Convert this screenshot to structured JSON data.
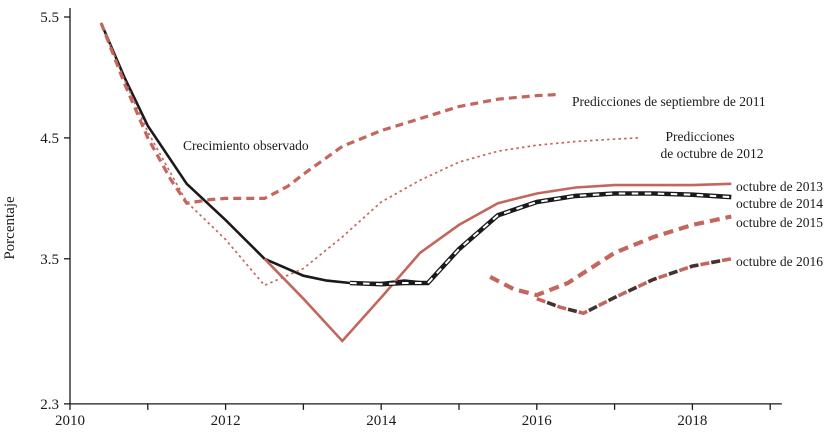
{
  "figure": {
    "ylabel": "Porcentaje",
    "labels": {
      "observed": "Crecimiento observado",
      "sep2011": "Predicciones de septiembre de 2011",
      "oct2012_line1": "Predicciones",
      "oct2012_line2": "de octubre de 2012",
      "oct2013": "octubre de 2013",
      "oct2014": "octubre de 2014",
      "oct2015": "octubre de 2015",
      "oct2016": "octubre de 2016"
    }
  },
  "chart_data": {
    "type": "line",
    "title": "",
    "xlabel": "",
    "ylabel": "Porcentaje",
    "xlim": [
      2010,
      2019.15
    ],
    "ylim": [
      2.3,
      5.5
    ],
    "x_ticks": [
      2010,
      2012,
      2014,
      2016,
      2018
    ],
    "x_minor_ticks": [
      2010,
      2011,
      2012,
      2013,
      2014,
      2015,
      2016,
      2017,
      2018,
      2019
    ],
    "y_ticks": [
      2.3,
      3.5,
      4.5,
      5.5
    ],
    "grid": false,
    "legend": "inline-labels",
    "colors": {
      "salmon": "#c3675e",
      "black": "#1a1a1a",
      "dark": "#453230",
      "white": "#ffffff"
    },
    "series": [
      {
        "id": "observado",
        "name": "Crecimiento observado",
        "style": "solid",
        "color": "black",
        "points": [
          [
            2010.4,
            5.45
          ],
          [
            2010.7,
            5.0
          ],
          [
            2011,
            4.6
          ],
          [
            2011.5,
            4.12
          ],
          [
            2012,
            3.82
          ],
          [
            2012.5,
            3.5
          ],
          [
            2013,
            3.36
          ],
          [
            2013.3,
            3.32
          ],
          [
            2013.6,
            3.3
          ],
          [
            2014,
            3.3
          ],
          [
            2014.3,
            3.32
          ],
          [
            2014.6,
            3.3
          ]
        ]
      },
      {
        "id": "sep2011",
        "name": "Predicciones de septiembre de 2011",
        "style": "dash",
        "color": "salmon",
        "points": [
          [
            2010.4,
            5.45
          ],
          [
            2010.7,
            4.95
          ],
          [
            2011,
            4.5
          ],
          [
            2011.3,
            4.15
          ],
          [
            2011.5,
            3.96
          ],
          [
            2011.8,
            3.99
          ],
          [
            2012,
            4.0
          ],
          [
            2012.5,
            4.0
          ],
          [
            2012.8,
            4.1
          ],
          [
            2013,
            4.2
          ],
          [
            2013.5,
            4.43
          ],
          [
            2014,
            4.56
          ],
          [
            2014.5,
            4.66
          ],
          [
            2015,
            4.76
          ],
          [
            2015.5,
            4.82
          ],
          [
            2016,
            4.85
          ],
          [
            2016.3,
            4.86
          ]
        ]
      },
      {
        "id": "oct2012",
        "name": "Predicciones de octubre de 2012",
        "style": "dot",
        "color": "salmon",
        "points": [
          [
            2010.4,
            5.45
          ],
          [
            2010.7,
            4.98
          ],
          [
            2011,
            4.55
          ],
          [
            2011.5,
            3.97
          ],
          [
            2012,
            3.66
          ],
          [
            2012.5,
            3.28
          ],
          [
            2013,
            3.42
          ],
          [
            2013.5,
            3.68
          ],
          [
            2014,
            3.97
          ],
          [
            2014.5,
            4.15
          ],
          [
            2015,
            4.3
          ],
          [
            2015.5,
            4.39
          ],
          [
            2016,
            4.44
          ],
          [
            2016.5,
            4.47
          ],
          [
            2017,
            4.49
          ],
          [
            2017.3,
            4.5
          ]
        ]
      },
      {
        "id": "oct2013",
        "name": "octubre de 2013",
        "style": "solid",
        "color": "salmon",
        "points": [
          [
            2012.5,
            3.5
          ],
          [
            2013,
            3.17
          ],
          [
            2013.5,
            2.82
          ],
          [
            2014,
            3.18
          ],
          [
            2014.5,
            3.55
          ],
          [
            2015,
            3.78
          ],
          [
            2015.5,
            3.96
          ],
          [
            2016,
            4.04
          ],
          [
            2016.5,
            4.09
          ],
          [
            2017,
            4.11
          ],
          [
            2017.5,
            4.11
          ],
          [
            2018,
            4.11
          ],
          [
            2018.5,
            4.12
          ]
        ]
      },
      {
        "id": "oct2014",
        "name": "octubre de 2014",
        "style": "railroad",
        "color": "black",
        "points": [
          [
            2013.6,
            3.3
          ],
          [
            2014,
            3.29
          ],
          [
            2014.3,
            3.3
          ],
          [
            2014.6,
            3.3
          ],
          [
            2015,
            3.58
          ],
          [
            2015.5,
            3.86
          ],
          [
            2016,
            3.97
          ],
          [
            2016.5,
            4.02
          ],
          [
            2017,
            4.04
          ],
          [
            2017.5,
            4.04
          ],
          [
            2018,
            4.03
          ],
          [
            2018.5,
            4.01
          ]
        ]
      },
      {
        "id": "oct2015",
        "name": "octubre de 2015",
        "style": "dash-heavy",
        "color": "salmon",
        "points": [
          [
            2015.4,
            3.35
          ],
          [
            2015.7,
            3.25
          ],
          [
            2016,
            3.2
          ],
          [
            2016.4,
            3.3
          ],
          [
            2017,
            3.55
          ],
          [
            2017.5,
            3.68
          ],
          [
            2018,
            3.78
          ],
          [
            2018.5,
            3.85
          ]
        ]
      },
      {
        "id": "oct2016",
        "name": "octubre de 2016",
        "style": "dash-bicolor",
        "color": "salmon",
        "points": [
          [
            2016,
            3.17
          ],
          [
            2016.3,
            3.1
          ],
          [
            2016.6,
            3.05
          ],
          [
            2017,
            3.18
          ],
          [
            2017.5,
            3.33
          ],
          [
            2018,
            3.44
          ],
          [
            2018.5,
            3.5
          ]
        ]
      }
    ]
  }
}
